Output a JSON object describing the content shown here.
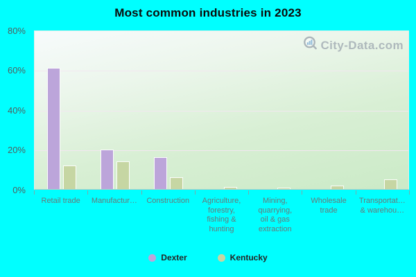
{
  "title": "Most common industries in 2023",
  "watermark": {
    "text": "City-Data.com"
  },
  "legend": [
    {
      "label": "Dexter",
      "color": "#bca5da"
    },
    {
      "label": "Kentucky",
      "color": "#c6d6a3"
    }
  ],
  "colors": {
    "background": "#00ffff",
    "plot_gradient_top": "#f7fbfc",
    "plot_gradient_bottom": "#cbeac7",
    "gridline": "#f2e7f0",
    "axis_tick_label": "#4f5f5f",
    "category_label": "#687878",
    "bar_border": "#ffffff",
    "watermark_gray": "#a7b1b7",
    "watermark_bars_blue": "#86b5d7"
  },
  "chart_data": {
    "type": "bar",
    "title": "Most common industries in 2023",
    "categories": [
      "Retail trade",
      "Manufactur…",
      "Construction",
      "Agriculture,\nforestry,\nfishing &\nhunting",
      "Mining,\nquarrying,\noil & gas\nextraction",
      "Wholesale\ntrade",
      "Transportat…\n& warehou…"
    ],
    "series": [
      {
        "name": "Dexter",
        "color": "#bca5da",
        "values": [
          61,
          20,
          16,
          0,
          0,
          0,
          0
        ]
      },
      {
        "name": "Kentucky",
        "color": "#c6d6a3",
        "values": [
          12,
          14,
          6,
          1.2,
          0.4,
          1.8,
          5
        ]
      }
    ],
    "xlabel": "",
    "ylabel": "",
    "ylim": [
      0,
      80
    ],
    "yticks": [
      "0%",
      "20%",
      "40%",
      "60%",
      "80%"
    ],
    "grid": true,
    "legend_position": "bottom"
  }
}
